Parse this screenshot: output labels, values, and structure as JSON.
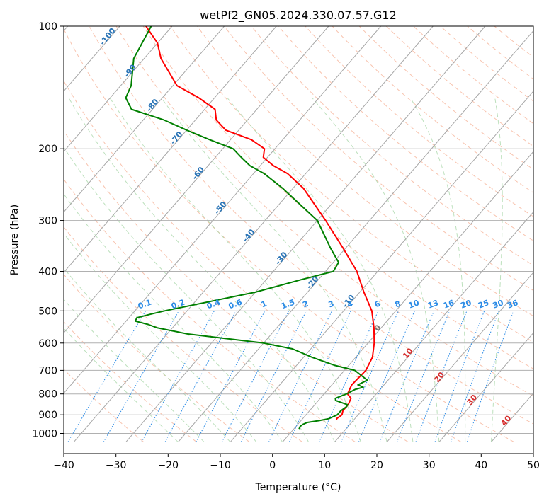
{
  "chart_data": {
    "type": "line",
    "subtype": "skew-t log-p diagram",
    "title": "wetPf2_GN05.2024.330.07.57.G12",
    "xlabel": "Temperature (°C)",
    "ylabel": "Pressure (hPa)",
    "xlim": [
      -40,
      50
    ],
    "ylim": [
      1050,
      100
    ],
    "y_scale": "log",
    "y_inverted": true,
    "grid": true,
    "x_ticks": [
      "−40",
      "−30",
      "−20",
      "−10",
      "0",
      "10",
      "20",
      "30",
      "40",
      "50"
    ],
    "y_ticks": [
      "100",
      "200",
      "300",
      "400",
      "500",
      "600",
      "700",
      "800",
      "900",
      "1000"
    ],
    "isotherm_label_values": [
      "-100",
      "-90",
      "-80",
      "-70",
      "-60",
      "-50",
      "-40",
      "-30",
      "-20",
      "-10",
      "0",
      "10",
      "20",
      "30",
      "40"
    ],
    "mixing_ratio_labels": [
      "0.1",
      "0.2",
      "0.4",
      "0.6",
      "1",
      "1.5",
      "2",
      "3",
      "4",
      "6",
      "8",
      "10",
      "13",
      "16",
      "20",
      "25",
      "30",
      "36"
    ],
    "mixing_ratio_values": [
      0.1,
      0.2,
      0.4,
      0.6,
      1,
      1.5,
      2,
      3,
      4,
      6,
      8,
      10,
      13,
      16,
      20,
      25,
      30,
      36
    ],
    "series": [
      {
        "color": "#ff0000",
        "pressure": [
          928,
          920,
          900,
          880,
          850,
          820,
          800,
          760,
          740,
          700,
          650,
          600,
          550,
          500,
          450,
          400,
          350,
          300,
          250,
          230,
          220,
          210,
          200,
          190,
          180,
          170,
          160,
          150,
          140,
          120,
          110,
          100
        ],
        "temperature": [
          6.8,
          6.5,
          6.9,
          6.4,
          6.4,
          5.9,
          4.5,
          3.8,
          3.9,
          4.1,
          3.2,
          1.2,
          -1.4,
          -4.6,
          -9.2,
          -14.0,
          -20.6,
          -28.4,
          -38.0,
          -43.5,
          -47.5,
          -50.8,
          -52.0,
          -56.0,
          -62.5,
          -66.0,
          -68.0,
          -73.0,
          -79.2,
          -86.8,
          -90.0,
          -95.0
        ]
      },
      {
        "color": "#008000",
        "pressure": [
          975,
          960,
          950,
          940,
          930,
          920,
          900,
          880,
          860,
          850,
          830,
          820,
          800,
          780,
          770,
          760,
          740,
          700,
          680,
          650,
          620,
          600,
          570,
          550,
          540,
          530,
          520,
          510,
          500,
          450,
          420,
          400,
          380,
          350,
          300,
          250,
          230,
          220,
          210,
          200,
          190,
          180,
          170,
          160,
          150,
          140,
          120,
          100
        ],
        "temperature": [
          1.0,
          0.8,
          1.0,
          1.5,
          3.5,
          5.0,
          6.0,
          6.0,
          6.4,
          6.3,
          3.3,
          2.9,
          4.3,
          5.2,
          6.4,
          5.0,
          6.0,
          2.0,
          -2.8,
          -8.4,
          -13.5,
          -20.0,
          -36.0,
          -43.0,
          -45.2,
          -48.2,
          -48.5,
          -46.5,
          -44.3,
          -30.0,
          -23.5,
          -18.5,
          -19.0,
          -23.0,
          -30.0,
          -42.0,
          -48.0,
          -52.0,
          -55.0,
          -58.0,
          -64.0,
          -70.0,
          -76.0,
          -84.0,
          -87.0,
          -88.0,
          -92.0,
          -94.0
        ]
      }
    ]
  }
}
